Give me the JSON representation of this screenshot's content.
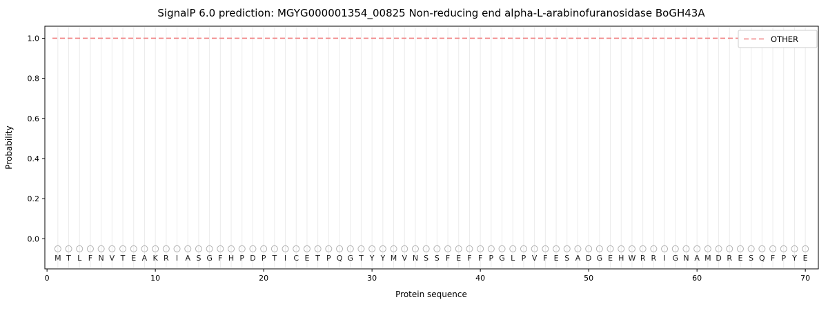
{
  "figure": {
    "title": "SignalP 6.0 prediction: MGYG000001354_00825 Non-reducing end alpha-L-arabinofuranosidase BoGH43A"
  },
  "chart_data": {
    "type": "line",
    "title": "SignalP 6.0 prediction: MGYG000001354_00825 Non-reducing end alpha-L-arabinofuranosidase BoGH43A",
    "xlabel": "Protein sequence",
    "ylabel": "Probability",
    "xlim": [
      -0.2,
      71.2
    ],
    "ylim": [
      -0.15,
      1.06
    ],
    "xticks": [
      0,
      10,
      20,
      30,
      40,
      50,
      60,
      70
    ],
    "yticks": [
      "0.0",
      "0.2",
      "0.4",
      "0.6",
      "0.8",
      "1.0"
    ],
    "grid": "light vertical gridline at every residue position",
    "legend": {
      "position": "upper right",
      "entries": [
        {
          "label": "OTHER",
          "color": "#f07d7f",
          "linestyle": "dashed"
        }
      ]
    },
    "series": [
      {
        "name": "OTHER",
        "color": "#f07d7f",
        "linestyle": "dashed",
        "x": [
          1,
          70
        ],
        "y": [
          1.0,
          1.0
        ]
      }
    ],
    "residue_markers": {
      "y": -0.05,
      "marker": "open-circle",
      "color": "#b3b3b3"
    },
    "sequence": "MTLFNVTEAKRIASGFHPDPTICETPQGTYYMVNSSFEFFPGLPVFESADGEHWRRIGNAMDRESQFPYE"
  }
}
